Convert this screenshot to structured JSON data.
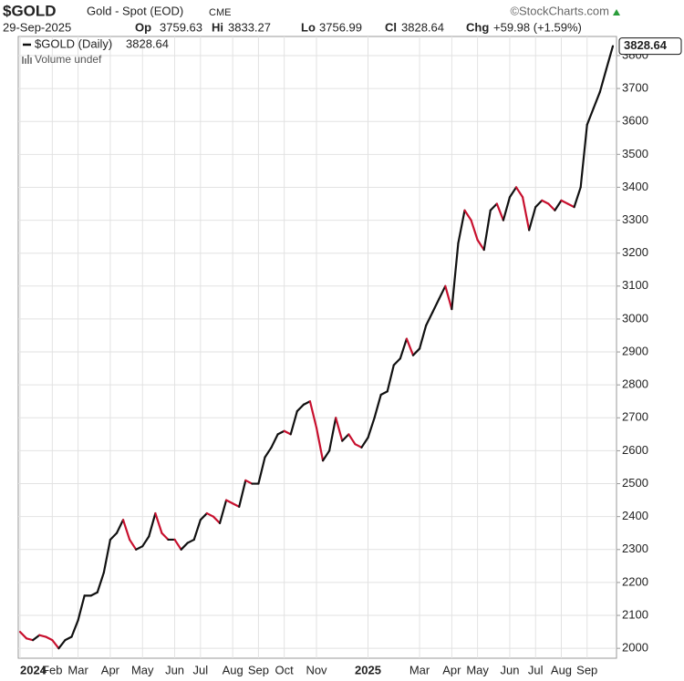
{
  "header": {
    "symbol": "$GOLD",
    "name": "Gold - Spot (EOD)",
    "exchange": "CME",
    "source": "©StockCharts.com",
    "date": "29-Sep-2025",
    "open_label": "Op",
    "open": "3759.63",
    "high_label": "Hi",
    "high": "3833.27",
    "low_label": "Lo",
    "low": "3756.99",
    "close_label": "Cl",
    "change_label": "Chg",
    "change": "+59.98 (+1.59%)"
  },
  "chart_data": {
    "type": "line",
    "categories": [
      "2024",
      null,
      null,
      null,
      null,
      "Feb",
      null,
      null,
      null,
      "Mar",
      null,
      null,
      null,
      null,
      "Apr",
      null,
      null,
      null,
      null,
      "May",
      null,
      null,
      null,
      null,
      "Jun",
      null,
      null,
      null,
      "Jul",
      null,
      null,
      null,
      null,
      "Aug",
      null,
      null,
      null,
      "Sep",
      null,
      null,
      null,
      "Oct",
      null,
      null,
      null,
      null,
      "Nov",
      null,
      null,
      null,
      null,
      null,
      null,
      null,
      "2025",
      null,
      null,
      null,
      null,
      null,
      null,
      null,
      "Mar",
      null,
      null,
      null,
      null,
      "Apr",
      null,
      null,
      null,
      "May",
      null,
      null,
      null,
      null,
      "Jun",
      null,
      null,
      null,
      "Jul",
      null,
      null,
      null,
      "Aug",
      null,
      null,
      null,
      "Sep",
      null,
      null,
      null,
      null
    ],
    "series": [
      {
        "name": "$GOLD (Daily)",
        "up_color": "#111111",
        "down_color": "#c8102e",
        "values": [
          2050,
          2030,
          2025,
          2040,
          2035,
          2025,
          2000,
          2025,
          2035,
          2085,
          2160,
          2160,
          2170,
          2230,
          2330,
          2350,
          2390,
          2330,
          2300,
          2310,
          2340,
          2410,
          2350,
          2330,
          2330,
          2300,
          2320,
          2330,
          2390,
          2410,
          2400,
          2380,
          2450,
          2440,
          2430,
          2510,
          2500,
          2500,
          2580,
          2610,
          2650,
          2660,
          2650,
          2720,
          2740,
          2750,
          2670,
          2570,
          2600,
          2700,
          2630,
          2650,
          2620,
          2610,
          2640,
          2700,
          2770,
          2780,
          2860,
          2880,
          2940,
          2890,
          2910,
          2980,
          3020,
          3060,
          3100,
          3030,
          3230,
          3330,
          3300,
          3240,
          3210,
          3330,
          3350,
          3300,
          3370,
          3400,
          3370,
          3270,
          3340,
          3360,
          3350,
          3330,
          3360,
          3350,
          3340,
          3400,
          3590,
          3640,
          3690,
          3760,
          3828.64
        ]
      }
    ],
    "ylim": [
      1970,
      3858
    ],
    "yticks": [
      2000,
      2100,
      2200,
      2300,
      2400,
      2500,
      2600,
      2700,
      2800,
      2900,
      3000,
      3100,
      3200,
      3300,
      3400,
      3500,
      3600,
      3700,
      3800
    ],
    "legend": "Volume undef",
    "grid": true
  }
}
